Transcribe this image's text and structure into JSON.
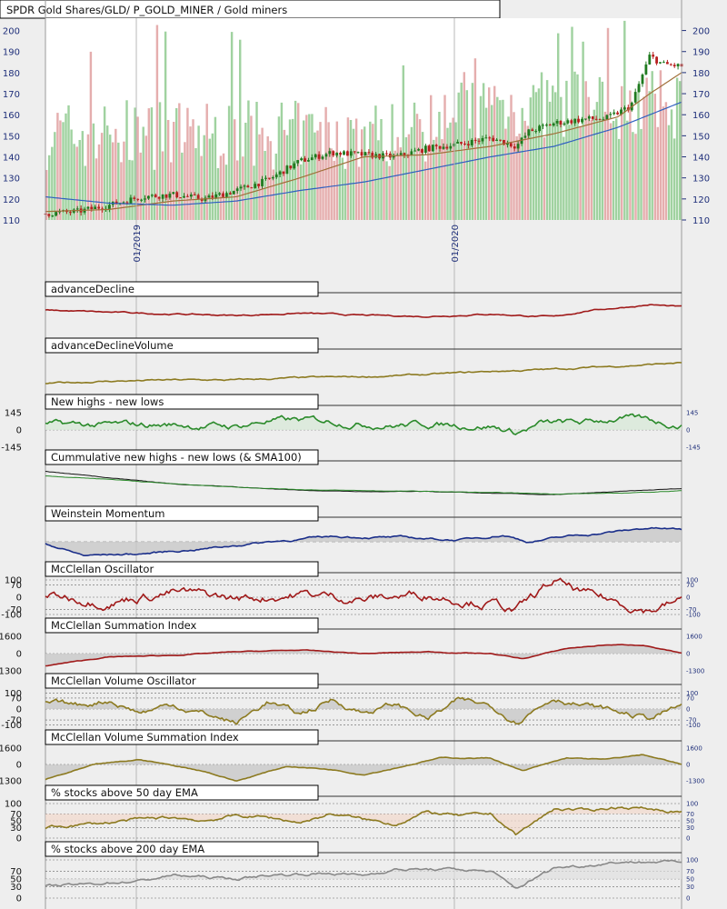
{
  "chart_title": "SPDR Gold Shares/GLD/ P_GOLD_MINER / Gold miners",
  "x_axis": {
    "labels": [
      "01/2019",
      "01/2020"
    ]
  },
  "colors": {
    "background": "#eeeeee",
    "axis_label": "#1f2f7a",
    "up_candle": "#1f7a1f",
    "down_candle": "#b82020",
    "volume_up": "#8fca8f",
    "volume_down": "#e0a0a0",
    "sma_short": "#a0703a",
    "sma_long": "#3060c0",
    "advance_decline": "#a01a1a",
    "olive": "#8c7a20",
    "green": "#2a8a2a",
    "navy": "#1a2e8a",
    "gray_line": "#888888"
  },
  "chart_data": [
    {
      "type": "candlestick",
      "title": "SPDR Gold Shares/GLD/ P_GOLD_MINER / Gold miners",
      "ylim": [
        110,
        205
      ],
      "y_ticks": [
        110,
        120,
        130,
        140,
        150,
        160,
        170,
        180,
        190,
        200
      ],
      "x_labels": [
        "01/2019",
        "01/2020"
      ],
      "series": [
        {
          "name": "",
          "role": "price_close",
          "key_points": [
            [
              0,
              113
            ],
            [
              0.05,
              114
            ],
            [
              0.1,
              117
            ],
            [
              0.15,
              121
            ],
            [
              0.2,
              122
            ],
            [
              0.25,
              120
            ],
            [
              0.3,
              124
            ],
            [
              0.35,
              129
            ],
            [
              0.4,
              138
            ],
            [
              0.45,
              142
            ],
            [
              0.5,
              141
            ],
            [
              0.55,
              140
            ],
            [
              0.6,
              144
            ],
            [
              0.65,
              146
            ],
            [
              0.7,
              149
            ],
            [
              0.74,
              145
            ],
            [
              0.76,
              152
            ],
            [
              0.8,
              156
            ],
            [
              0.85,
              158
            ],
            [
              0.88,
              158
            ],
            [
              0.92,
              164
            ],
            [
              0.95,
              188
            ],
            [
              0.97,
              184
            ],
            [
              1.0,
              183
            ]
          ]
        },
        {
          "name": "",
          "role": "moving_average_short",
          "key_points": [
            [
              0,
              114
            ],
            [
              0.1,
              115
            ],
            [
              0.2,
              119
            ],
            [
              0.3,
              121
            ],
            [
              0.4,
              130
            ],
            [
              0.5,
              140
            ],
            [
              0.6,
              141
            ],
            [
              0.7,
              145
            ],
            [
              0.8,
              151
            ],
            [
              0.9,
              159
            ],
            [
              0.95,
              170
            ],
            [
              1.0,
              180
            ]
          ]
        },
        {
          "name": "",
          "role": "moving_average_long",
          "key_points": [
            [
              0,
              121
            ],
            [
              0.1,
              118
            ],
            [
              0.2,
              117
            ],
            [
              0.3,
              119
            ],
            [
              0.4,
              124
            ],
            [
              0.5,
              128
            ],
            [
              0.6,
              134
            ],
            [
              0.7,
              140
            ],
            [
              0.8,
              145
            ],
            [
              0.9,
              154
            ],
            [
              1.0,
              166
            ]
          ]
        }
      ]
    },
    {
      "type": "line",
      "title": "advanceDecline",
      "y_ticks_left": [],
      "y_ticks_right": [],
      "series": [
        {
          "name": "",
          "key_points": [
            [
              0,
              0.55
            ],
            [
              0.1,
              0.4
            ],
            [
              0.2,
              0.3
            ],
            [
              0.3,
              0.2
            ],
            [
              0.4,
              0.35
            ],
            [
              0.5,
              0.2
            ],
            [
              0.6,
              0.15
            ],
            [
              0.7,
              0.3
            ],
            [
              0.8,
              0.1
            ],
            [
              0.85,
              0.5
            ],
            [
              0.9,
              0.7
            ],
            [
              0.95,
              0.9
            ],
            [
              1.0,
              0.75
            ]
          ]
        }
      ]
    },
    {
      "type": "line",
      "title": "advanceDeclineVolume",
      "y_ticks_left": [],
      "y_ticks_right": [],
      "series": [
        {
          "name": "",
          "key_points": [
            [
              0,
              0.05
            ],
            [
              0.1,
              0.15
            ],
            [
              0.2,
              0.2
            ],
            [
              0.3,
              0.2
            ],
            [
              0.4,
              0.3
            ],
            [
              0.5,
              0.35
            ],
            [
              0.6,
              0.45
            ],
            [
              0.7,
              0.6
            ],
            [
              0.8,
              0.7
            ],
            [
              0.9,
              0.85
            ],
            [
              1.0,
              1.0
            ]
          ]
        }
      ]
    },
    {
      "type": "line",
      "title": "New highs - new lows",
      "y_ticks_left": [
        "145",
        "0",
        "-145"
      ],
      "y_ticks_right": [
        "145",
        "0",
        "-145"
      ],
      "series": [
        {
          "name": "",
          "key_points": [
            [
              0,
              0.3
            ],
            [
              0.1,
              0.25
            ],
            [
              0.2,
              0.3
            ],
            [
              0.3,
              0.2
            ],
            [
              0.35,
              0.55
            ],
            [
              0.45,
              0.5
            ],
            [
              0.55,
              0.3
            ],
            [
              0.6,
              0.35
            ],
            [
              0.7,
              0.25
            ],
            [
              0.74,
              -0.15
            ],
            [
              0.78,
              0.35
            ],
            [
              0.85,
              0.4
            ],
            [
              0.9,
              0.7
            ],
            [
              0.93,
              0.6
            ],
            [
              1.0,
              0.3
            ]
          ]
        }
      ]
    },
    {
      "type": "line",
      "title": "Cummulative new highs - new lows (& SMA100)",
      "y_ticks_left": [],
      "y_ticks_right": [],
      "series": [
        {
          "name": "",
          "key_points": [
            [
              0,
              1.0
            ],
            [
              0.1,
              0.8
            ],
            [
              0.2,
              0.6
            ],
            [
              0.3,
              0.5
            ],
            [
              0.4,
              0.4
            ],
            [
              0.5,
              0.35
            ],
            [
              0.6,
              0.35
            ],
            [
              0.7,
              0.3
            ],
            [
              0.8,
              0.25
            ],
            [
              0.9,
              0.35
            ],
            [
              1.0,
              0.45
            ]
          ]
        },
        {
          "name": "",
          "key_points": [
            [
              0,
              0.85
            ],
            [
              0.1,
              0.75
            ],
            [
              0.2,
              0.6
            ],
            [
              0.3,
              0.5
            ],
            [
              0.4,
              0.42
            ],
            [
              0.5,
              0.38
            ],
            [
              0.6,
              0.36
            ],
            [
              0.7,
              0.32
            ],
            [
              0.8,
              0.28
            ],
            [
              0.9,
              0.3
            ],
            [
              1.0,
              0.38
            ]
          ]
        }
      ]
    },
    {
      "type": "area",
      "title": "Weinstein Momentum",
      "y_ticks_left": [],
      "y_ticks_right": [],
      "series": [
        {
          "name": "",
          "key_points": [
            [
              0,
              -0.1
            ],
            [
              0.06,
              -0.8
            ],
            [
              0.15,
              -0.7
            ],
            [
              0.25,
              -0.4
            ],
            [
              0.35,
              0.0
            ],
            [
              0.45,
              0.3
            ],
            [
              0.55,
              0.25
            ],
            [
              0.65,
              0.1
            ],
            [
              0.72,
              0.4
            ],
            [
              0.76,
              0.0
            ],
            [
              0.82,
              0.3
            ],
            [
              0.9,
              0.6
            ],
            [
              0.95,
              0.8
            ],
            [
              1.0,
              0.7
            ]
          ]
        }
      ]
    },
    {
      "type": "line",
      "title": "McClellan Oscillator",
      "y_ticks_left": [
        "100",
        "70",
        "0",
        "-70",
        "-100"
      ],
      "y_ticks_right": [
        "100",
        "70",
        "0",
        "-70",
        "-100"
      ],
      "series": [
        {
          "name": "",
          "key_points": [
            [
              0,
              0.1
            ],
            [
              0.1,
              -0.2
            ],
            [
              0.2,
              0.3
            ],
            [
              0.3,
              -0.1
            ],
            [
              0.4,
              0.2
            ],
            [
              0.5,
              -0.1
            ],
            [
              0.6,
              0.2
            ],
            [
              0.7,
              -0.3
            ],
            [
              0.74,
              -0.8
            ],
            [
              0.8,
              0.9
            ],
            [
              0.85,
              0.1
            ],
            [
              0.9,
              -0.3
            ],
            [
              0.95,
              -0.7
            ],
            [
              1.0,
              -0.2
            ]
          ]
        }
      ]
    },
    {
      "type": "area",
      "title": "McClellan Summation Index",
      "y_ticks_left": [
        "1600",
        "0",
        "-1300"
      ],
      "y_ticks_right": [
        "1600",
        "0",
        "-1300"
      ],
      "series": [
        {
          "name": "",
          "key_points": [
            [
              0,
              -0.7
            ],
            [
              0.1,
              -0.2
            ],
            [
              0.2,
              -0.1
            ],
            [
              0.3,
              0.1
            ],
            [
              0.4,
              0.2
            ],
            [
              0.5,
              0.0
            ],
            [
              0.6,
              0.1
            ],
            [
              0.7,
              0.0
            ],
            [
              0.75,
              -0.3
            ],
            [
              0.82,
              0.3
            ],
            [
              0.88,
              0.5
            ],
            [
              0.94,
              0.5
            ],
            [
              1.0,
              0.0
            ]
          ]
        }
      ]
    },
    {
      "type": "area",
      "title": "McClellan Volume Oscillator",
      "y_ticks_left": [
        "100",
        "70",
        "0",
        "-70",
        "-100"
      ],
      "y_ticks_right": [
        "100",
        "70",
        "0",
        "-70",
        "-100"
      ],
      "series": [
        {
          "name": "",
          "key_points": [
            [
              0,
              0.4
            ],
            [
              0.05,
              0.2
            ],
            [
              0.1,
              0.6
            ],
            [
              0.15,
              -0.2
            ],
            [
              0.2,
              0.3
            ],
            [
              0.25,
              -0.3
            ],
            [
              0.3,
              -0.9
            ],
            [
              0.35,
              0.5
            ],
            [
              0.4,
              -0.4
            ],
            [
              0.45,
              0.6
            ],
            [
              0.5,
              -0.2
            ],
            [
              0.55,
              0.3
            ],
            [
              0.6,
              -0.6
            ],
            [
              0.65,
              0.5
            ],
            [
              0.7,
              0.2
            ],
            [
              0.74,
              -0.7
            ],
            [
              0.8,
              0.8
            ],
            [
              0.85,
              0.2
            ],
            [
              0.9,
              -0.2
            ],
            [
              0.95,
              -0.6
            ],
            [
              1.0,
              0.2
            ]
          ]
        }
      ]
    },
    {
      "type": "area",
      "title": "McClellan Volume Summation Index",
      "y_ticks_left": [
        "1600",
        "0",
        "-1300"
      ],
      "y_ticks_right": [
        "1600",
        "0",
        "-1300"
      ],
      "series": [
        {
          "name": "",
          "key_points": [
            [
              0,
              -0.9
            ],
            [
              0.08,
              0.0
            ],
            [
              0.15,
              0.3
            ],
            [
              0.25,
              -0.4
            ],
            [
              0.3,
              -1.0
            ],
            [
              0.38,
              -0.1
            ],
            [
              0.45,
              -0.3
            ],
            [
              0.5,
              -0.6
            ],
            [
              0.55,
              -0.2
            ],
            [
              0.62,
              0.4
            ],
            [
              0.7,
              0.4
            ],
            [
              0.75,
              -0.4
            ],
            [
              0.82,
              0.4
            ],
            [
              0.88,
              0.3
            ],
            [
              0.94,
              0.6
            ],
            [
              1.0,
              0.0
            ]
          ]
        }
      ]
    },
    {
      "type": "line",
      "title": "% stocks above 50 day EMA",
      "y_ticks_left": [
        "100",
        "70",
        "50",
        "30",
        "0"
      ],
      "y_ticks_right": [
        "100",
        "70",
        "50",
        "30",
        "0"
      ],
      "series": [
        {
          "name": "",
          "key_points": [
            [
              0,
              30
            ],
            [
              0.05,
              38
            ],
            [
              0.1,
              45
            ],
            [
              0.15,
              55
            ],
            [
              0.2,
              60
            ],
            [
              0.25,
              50
            ],
            [
              0.3,
              65
            ],
            [
              0.35,
              60
            ],
            [
              0.4,
              45
            ],
            [
              0.45,
              70
            ],
            [
              0.5,
              55
            ],
            [
              0.55,
              40
            ],
            [
              0.6,
              75
            ],
            [
              0.65,
              65
            ],
            [
              0.7,
              70
            ],
            [
              0.74,
              10
            ],
            [
              0.8,
              85
            ],
            [
              0.85,
              80
            ],
            [
              0.9,
              90
            ],
            [
              0.95,
              85
            ],
            [
              1.0,
              75
            ]
          ]
        }
      ]
    },
    {
      "type": "line",
      "title": "% stocks above 200 day EMA",
      "y_ticks_left": [
        "70",
        "50",
        "30",
        "0"
      ],
      "y_ticks_right": [
        "100",
        "70",
        "50",
        "30",
        "0"
      ],
      "series": [
        {
          "name": "",
          "key_points": [
            [
              0,
              30
            ],
            [
              0.1,
              40
            ],
            [
              0.15,
              45
            ],
            [
              0.2,
              60
            ],
            [
              0.3,
              50
            ],
            [
              0.35,
              60
            ],
            [
              0.45,
              65
            ],
            [
              0.5,
              60
            ],
            [
              0.55,
              75
            ],
            [
              0.65,
              75
            ],
            [
              0.7,
              70
            ],
            [
              0.74,
              25
            ],
            [
              0.8,
              80
            ],
            [
              0.85,
              85
            ],
            [
              0.9,
              95
            ],
            [
              0.95,
              95
            ],
            [
              1.0,
              95
            ]
          ]
        }
      ]
    }
  ]
}
